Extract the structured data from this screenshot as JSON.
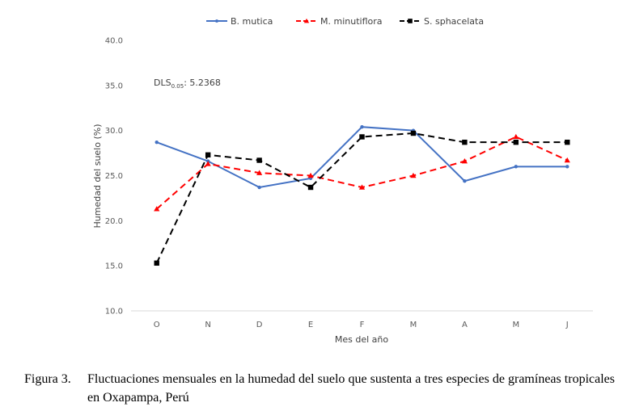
{
  "chart_data": {
    "type": "line",
    "xlabel": "Mes del año",
    "ylabel": "Humedad del suelo (%)",
    "categories": [
      "O",
      "N",
      "D",
      "E",
      "F",
      "M",
      "A",
      "M",
      "J"
    ],
    "y_ticks": [
      "10.0",
      "15.0",
      "20.0",
      "25.0",
      "30.0",
      "35.0",
      "40.0"
    ],
    "ylim": [
      10,
      40
    ],
    "grid": false,
    "legend_position": "top",
    "annotation": {
      "prefix": "DLS",
      "subscript": "0.05",
      "suffix": ": 5.2368"
    },
    "series": [
      {
        "name": "B. mutica",
        "values": [
          28.7,
          26.6,
          23.7,
          24.7,
          30.4,
          30.0,
          24.4,
          26.0,
          26.0
        ],
        "color": "#4472C4",
        "dash": "solid",
        "marker": "circle"
      },
      {
        "name": "M. minutiflora",
        "values": [
          21.3,
          26.3,
          25.3,
          25.0,
          23.7,
          25.0,
          26.6,
          29.3,
          26.7
        ],
        "color": "#FF0000",
        "dash": "dashed",
        "marker": "triangle"
      },
      {
        "name": "S. sphacelata",
        "values": [
          15.3,
          27.3,
          26.7,
          23.7,
          29.3,
          29.7,
          28.7,
          28.7,
          28.7
        ],
        "color": "#000000",
        "dash": "dashed",
        "marker": "square"
      }
    ]
  },
  "caption": {
    "label": "Figura 3.",
    "text": "Fluctuaciones mensuales en la humedad del suelo que sustenta a tres especies de gramíneas tropicales en Oxapampa, Perú"
  }
}
